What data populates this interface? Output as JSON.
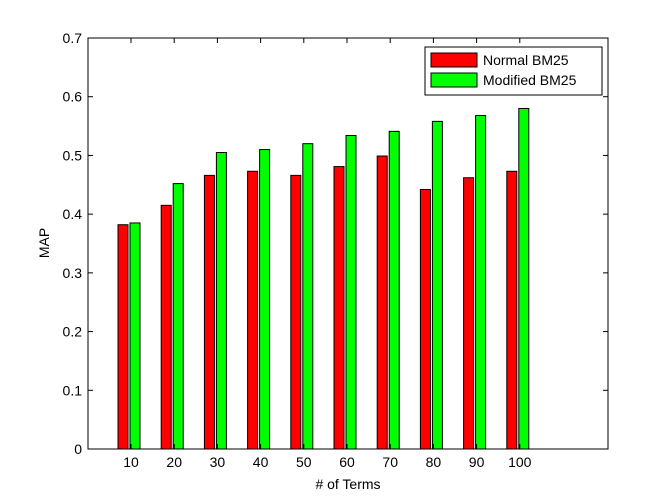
{
  "chart_data": {
    "type": "bar",
    "title": "",
    "xlabel": "# of Terms",
    "ylabel": "MAP",
    "categories": [
      "10",
      "20",
      "30",
      "40",
      "50",
      "60",
      "70",
      "80",
      "90",
      "100"
    ],
    "ylim": [
      0,
      0.7
    ],
    "yticks": [
      "0",
      "0.1",
      "0.2",
      "0.3",
      "0.4",
      "0.5",
      "0.6",
      "0.7"
    ],
    "grid": false,
    "legend_position": "top-right",
    "series": [
      {
        "name": "Normal BM25",
        "color": "#ff0000",
        "values": [
          0.382,
          0.415,
          0.466,
          0.473,
          0.466,
          0.481,
          0.499,
          0.442,
          0.462,
          0.473
        ]
      },
      {
        "name": "Modified BM25",
        "color": "#00ff00",
        "values": [
          0.385,
          0.452,
          0.505,
          0.51,
          0.52,
          0.534,
          0.541,
          0.558,
          0.568,
          0.58
        ]
      }
    ]
  }
}
